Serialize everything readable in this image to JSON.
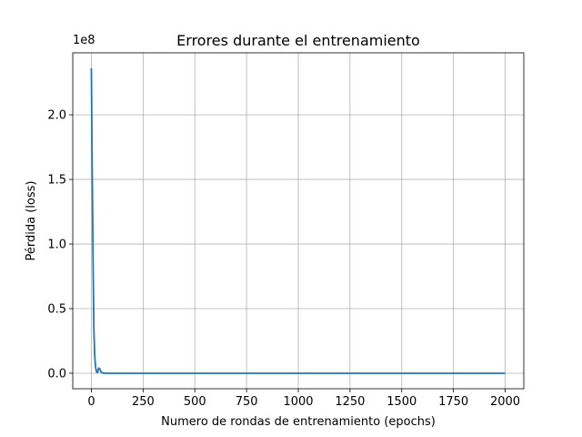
{
  "chart_data": {
    "type": "line",
    "title": "Errores durante el entrenamiento",
    "xlabel": "Numero de rondas de entrenamiento (epochs)",
    "ylabel": "Pérdida (loss)",
    "y_offset_label": "1e8",
    "xlim": [
      -90,
      2090
    ],
    "ylim": [
      -0.12,
      2.48
    ],
    "y_scale_factor": 100000000,
    "grid": true,
    "x_ticks": [
      0,
      250,
      500,
      750,
      1000,
      1250,
      1500,
      1750,
      2000
    ],
    "x_tick_labels": [
      "0",
      "250",
      "500",
      "750",
      "1000",
      "1250",
      "1500",
      "1750",
      "2000"
    ],
    "y_ticks": [
      0.0,
      0.5,
      1.0,
      1.5,
      2.0
    ],
    "y_tick_labels": [
      "0.0",
      "0.5",
      "1.0",
      "1.5",
      "2.0"
    ],
    "series": [
      {
        "name": "",
        "color": "#1f77b4",
        "x": [
          0,
          3,
          8,
          12,
          16,
          20,
          25,
          30,
          35,
          40,
          45,
          50,
          60,
          80,
          100,
          150,
          200,
          500,
          1000,
          1500,
          2000
        ],
        "y": [
          2.36,
          1.75,
          0.9,
          0.35,
          0.14,
          0.05,
          0.01,
          0.005,
          0.04,
          0.035,
          0.015,
          0.004,
          0.001,
          0.0,
          0.0,
          0.0,
          0.0,
          0.0,
          0.0,
          0.0,
          0.0
        ]
      }
    ]
  },
  "colors": {
    "line": "#1f77b4",
    "grid": "#b0b0b0",
    "axes": "#000000"
  }
}
